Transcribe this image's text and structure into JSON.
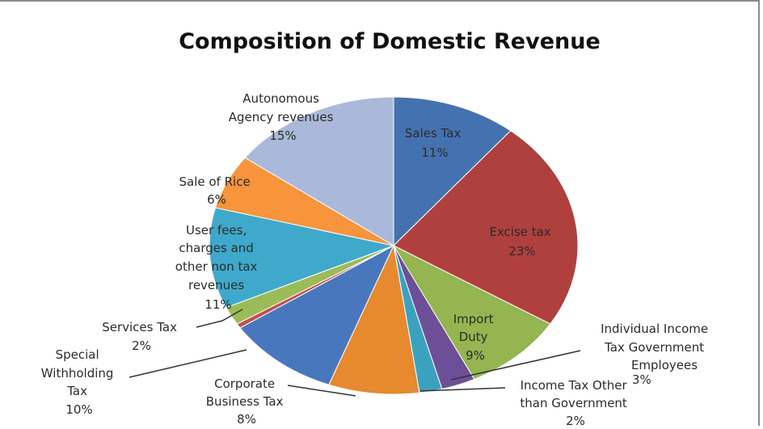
{
  "chart_data": {
    "type": "pie",
    "title": "Composition of Domestic Revenue",
    "slices": [
      {
        "label": "Sales Tax",
        "pct": "11%",
        "value": 11,
        "color": "#4472b0"
      },
      {
        "label": "Excise tax",
        "pct": "23%",
        "value": 23,
        "color": "#b0403d"
      },
      {
        "label": "Import Duty",
        "pct": "9%",
        "value": 9,
        "color": "#94b550"
      },
      {
        "label": "Individual Income Tax Government Employees",
        "pct": "3%",
        "value": 3,
        "color": "#6d4f98"
      },
      {
        "label": "Income Tax Other than Government",
        "pct": "2%",
        "value": 2,
        "color": "#3aa2bf"
      },
      {
        "label": "Corporate Business Tax",
        "pct": "8%",
        "value": 8,
        "color": "#e6892f"
      },
      {
        "label": "Special Withholding Tax",
        "pct": "10%",
        "value": 10,
        "color": "#4977be"
      },
      {
        "label": "",
        "pct": "",
        "value": 0.5,
        "color": "#c0504d"
      },
      {
        "label": "Services Tax",
        "pct": "2%",
        "value": 2,
        "color": "#9bbb59"
      },
      {
        "label": "User fees, charges and other non tax revenues",
        "pct": "11%",
        "value": 11,
        "color": "#3fa9cc"
      },
      {
        "label": "Sale of Rice",
        "pct": "6%",
        "value": 6,
        "color": "#f7943c"
      },
      {
        "label": "Autonomous Agency revenues",
        "pct": "15%",
        "value": 15,
        "color": "#aab9d9"
      }
    ]
  },
  "labels": {
    "sales_tax": [
      "Sales Tax",
      "11%"
    ],
    "excise": [
      "Excise tax",
      "23%"
    ],
    "import": [
      "Import",
      "Duty",
      "9%"
    ],
    "indiv": [
      "Individual Income",
      "Tax Government",
      "Employees"
    ],
    "indiv_pct": "3%",
    "other_income": [
      "Income Tax Other",
      "than Government",
      "2%"
    ],
    "corporate": [
      "Corporate",
      "Business Tax",
      "8%"
    ],
    "special": [
      "Special",
      "Withholding",
      "Tax",
      "10%"
    ],
    "services": [
      "Services Tax",
      "2%"
    ],
    "user_fees": [
      "User fees,",
      "charges and",
      "other non tax",
      "revenues",
      "11%"
    ],
    "rice": [
      "Sale of Rice",
      "6%"
    ],
    "autonomous": [
      "Autonomous",
      "Agency revenues",
      "15%"
    ]
  }
}
